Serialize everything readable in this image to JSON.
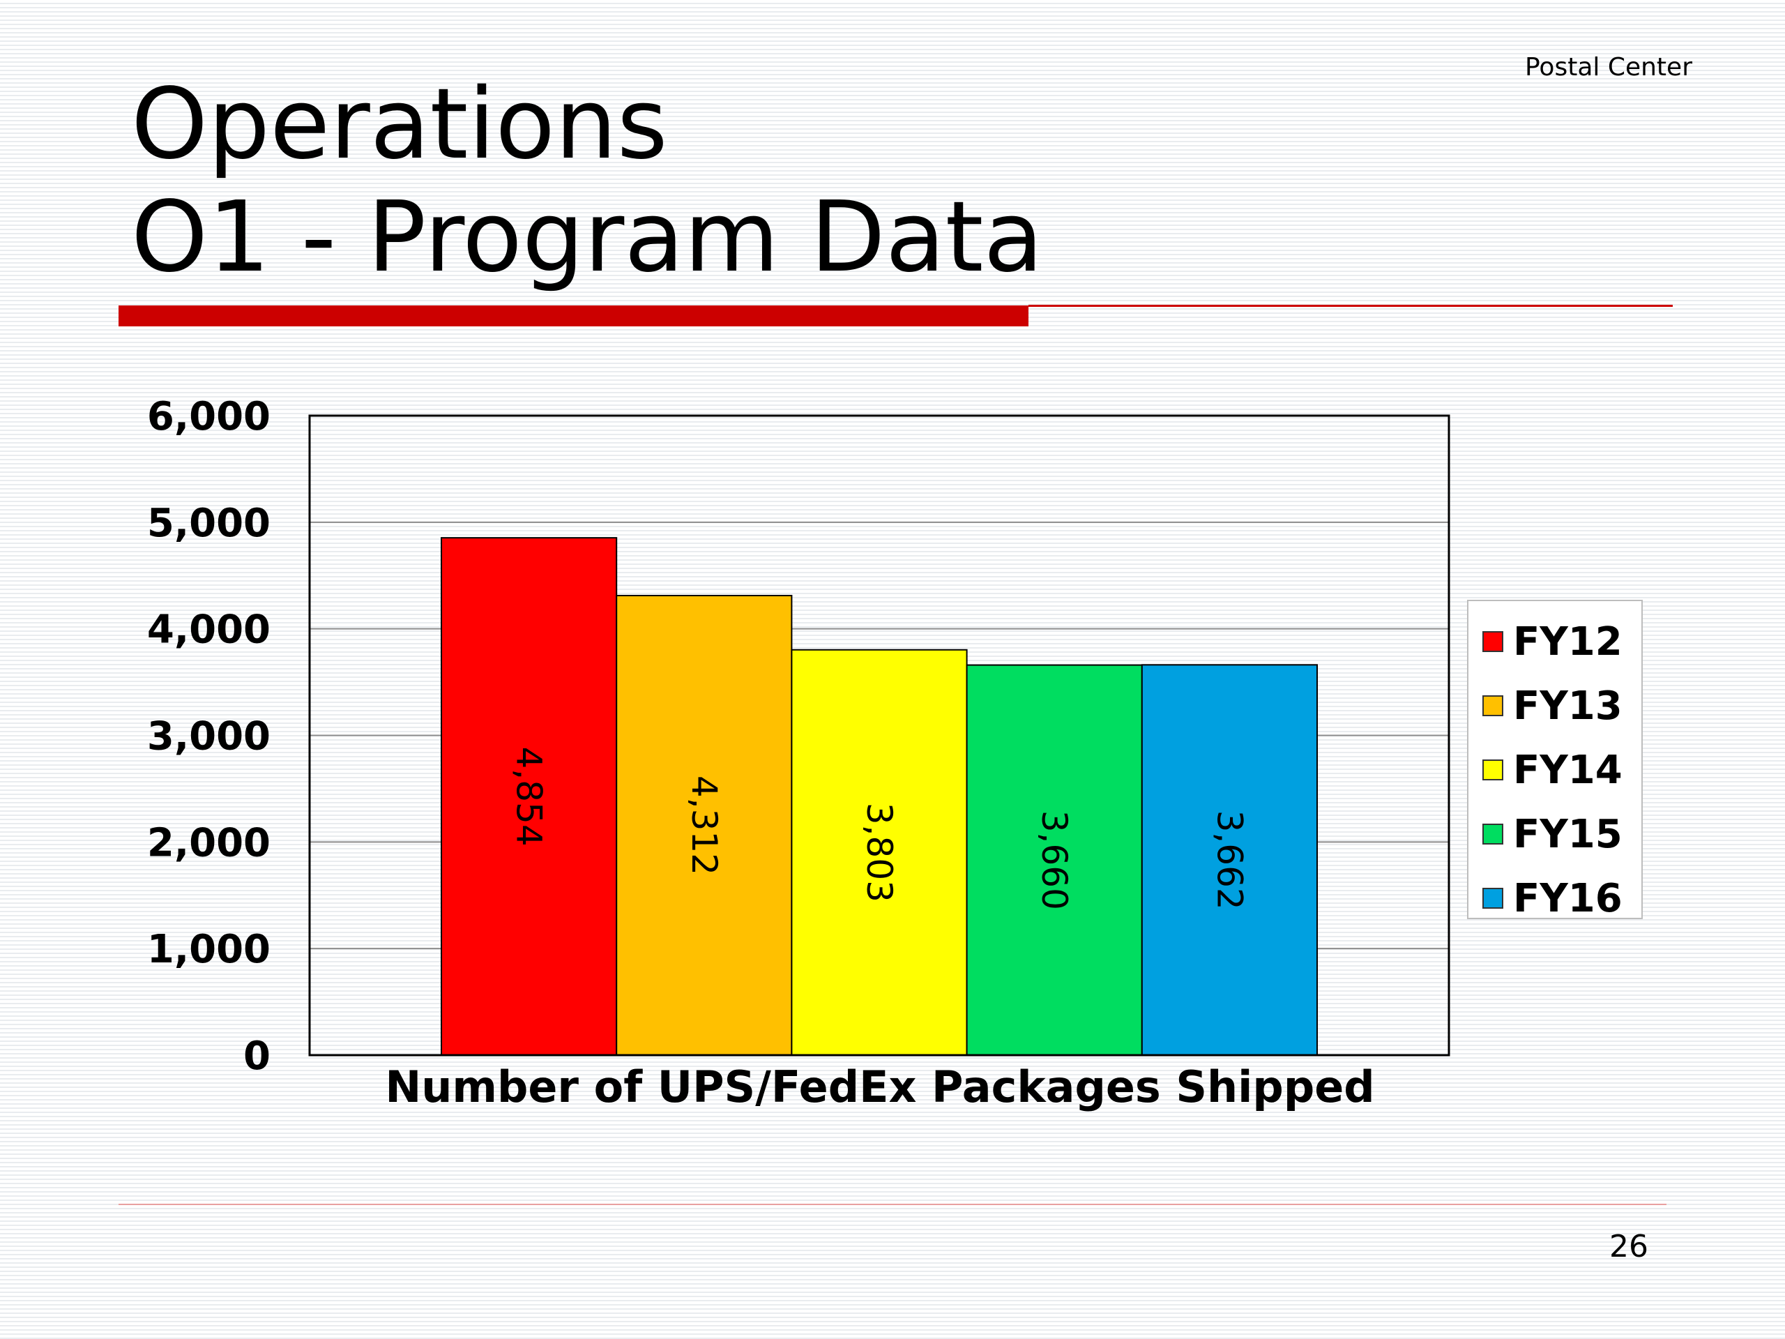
{
  "slide": {
    "header_label": "Postal Center",
    "title_line1": "Operations",
    "title_line2": "O1 - Program Data",
    "page_number": "26"
  },
  "colors": {
    "accent_red": "#cc0000"
  },
  "chart_data": {
    "type": "bar",
    "categories": [
      "Number of UPS/FedEx Packages Shipped"
    ],
    "series": [
      {
        "name": "FY12",
        "values": [
          4854
        ],
        "label": "4,854",
        "color": "#ff0000"
      },
      {
        "name": "FY13",
        "values": [
          4312
        ],
        "label": "4,312",
        "color": "#ffc000"
      },
      {
        "name": "FY14",
        "values": [
          3803
        ],
        "label": "3,803",
        "color": "#ffff00"
      },
      {
        "name": "FY15",
        "values": [
          3660
        ],
        "label": "3,660",
        "color": "#00dd60"
      },
      {
        "name": "FY16",
        "values": [
          3662
        ],
        "label": "3,662",
        "color": "#00a0e0"
      }
    ],
    "xlabel": "Number of UPS/FedEx Packages Shipped",
    "ylabel": "",
    "ylim": [
      0,
      6000
    ],
    "yticks": [
      0,
      1000,
      2000,
      3000,
      4000,
      5000,
      6000
    ],
    "ytick_labels": [
      "0",
      "1,000",
      "2,000",
      "3,000",
      "4,000",
      "5,000",
      "6,000"
    ],
    "grid": true,
    "legend_position": "right",
    "data_label_orientation": "vertical"
  }
}
